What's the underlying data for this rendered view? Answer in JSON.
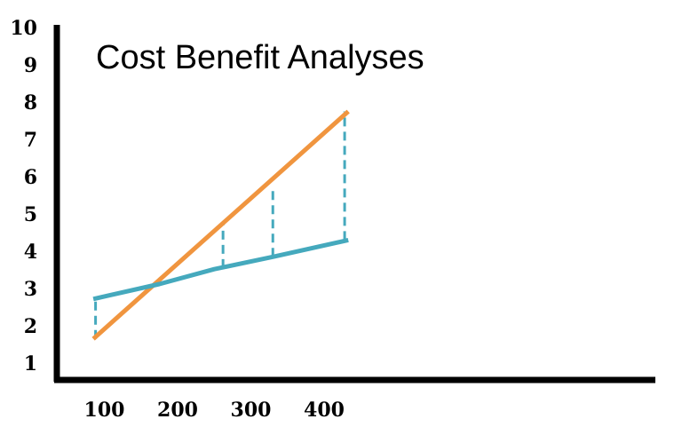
{
  "chart_data": {
    "type": "line",
    "title": "Cost Benefit Analyses",
    "xlabel": "",
    "ylabel": "",
    "x_ticks": [
      100,
      200,
      300,
      400
    ],
    "y_ticks": [
      1,
      2,
      3,
      4,
      5,
      6,
      7,
      8,
      9,
      10
    ],
    "series": [
      {
        "color": "#f0953f",
        "points": [
          [
            85,
            1.65
          ],
          [
            433,
            7.75
          ]
        ]
      },
      {
        "color": "#45a9bd",
        "points": [
          [
            85,
            2.72
          ],
          [
            175,
            3.12
          ],
          [
            250,
            3.52
          ],
          [
            330,
            3.85
          ],
          [
            433,
            4.3
          ]
        ]
      }
    ],
    "difference_markers": [
      {
        "x": 88,
        "y_from": 1.65,
        "y_to": 2.72,
        "color": "#45a9bd"
      },
      {
        "x": 262,
        "y_from": 3.55,
        "y_to": 4.72,
        "color": "#45a9bd"
      },
      {
        "x": 330,
        "y_from": 3.85,
        "y_to": 5.72,
        "color": "#45a9bd"
      },
      {
        "x": 428,
        "y_from": 4.3,
        "y_to": 7.75,
        "color": "#45a9bd"
      }
    ],
    "grid": false,
    "legend": "none"
  }
}
